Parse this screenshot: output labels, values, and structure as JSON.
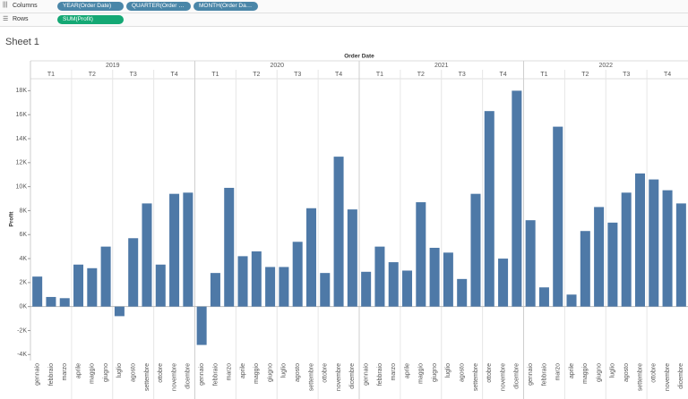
{
  "toolbar": {
    "columns_label": "Columns",
    "rows_label": "Rows",
    "column_pills": [
      "YEAR(Order Date)",
      "QUARTER(Order Date)",
      "MONTH(Order Date)"
    ],
    "row_pills": [
      "SUM(Profit)"
    ]
  },
  "sheet_title": "Sheet 1",
  "chart_data": {
    "type": "bar",
    "header": "Order Date",
    "y_label": "Profit",
    "years": [
      "2019",
      "2020",
      "2021",
      "2022"
    ],
    "quarters": [
      "T1",
      "T2",
      "T3",
      "T4"
    ],
    "categories": [
      "gennaio",
      "febbraio",
      "marzo",
      "aprile",
      "maggio",
      "giugno",
      "luglio",
      "agosto",
      "settembre",
      "ottobre",
      "novembre",
      "dicembre",
      "gennaio",
      "febbraio",
      "marzo",
      "aprile",
      "maggio",
      "giugno",
      "luglio",
      "agosto",
      "settembre",
      "ottobre",
      "novembre",
      "dicembre",
      "gennaio",
      "febbraio",
      "marzo",
      "aprile",
      "maggio",
      "giugno",
      "luglio",
      "agosto",
      "settembre",
      "ottobre",
      "novembre",
      "dicembre",
      "gennaio",
      "febbraio",
      "marzo",
      "aprile",
      "maggio",
      "giugno",
      "luglio",
      "agosto",
      "settembre",
      "ottobre",
      "novembre",
      "dicembre"
    ],
    "values": [
      2500,
      800,
      700,
      3500,
      3200,
      5000,
      -800,
      5700,
      8600,
      3500,
      9400,
      9500,
      -3200,
      2800,
      9900,
      4200,
      4600,
      3300,
      3300,
      5400,
      8200,
      2800,
      12500,
      8100,
      2900,
      5000,
      3700,
      3000,
      8700,
      4900,
      4500,
      2300,
      9400,
      16300,
      4000,
      18000,
      7200,
      1600,
      15000,
      1000,
      6300,
      8300,
      7000,
      9500,
      11100,
      10600,
      9700,
      8600
    ],
    "color": "#4e79a7",
    "ylim": [
      -4500,
      18700
    ],
    "yticks": [
      {
        "value": -4000,
        "label": "-4K"
      },
      {
        "value": -2000,
        "label": "-2K"
      },
      {
        "value": 0,
        "label": "0K"
      },
      {
        "value": 2000,
        "label": "2K"
      },
      {
        "value": 4000,
        "label": "4K"
      },
      {
        "value": 6000,
        "label": "6K"
      },
      {
        "value": 8000,
        "label": "8K"
      },
      {
        "value": 10000,
        "label": "10K"
      },
      {
        "value": 12000,
        "label": "12K"
      },
      {
        "value": 14000,
        "label": "14K"
      },
      {
        "value": 16000,
        "label": "16K"
      },
      {
        "value": 18000,
        "label": "18K"
      }
    ]
  }
}
